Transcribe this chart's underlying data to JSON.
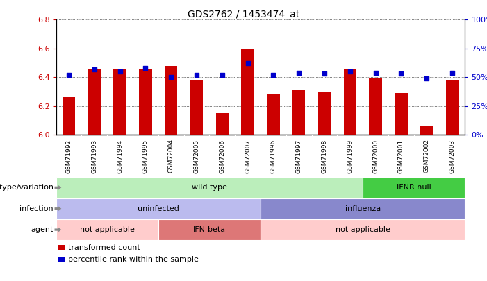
{
  "title": "GDS2762 / 1453474_at",
  "samples": [
    "GSM71992",
    "GSM71993",
    "GSM71994",
    "GSM71995",
    "GSM72004",
    "GSM72005",
    "GSM72006",
    "GSM72007",
    "GSM71996",
    "GSM71997",
    "GSM71998",
    "GSM71999",
    "GSM72000",
    "GSM72001",
    "GSM72002",
    "GSM72003"
  ],
  "bar_values": [
    6.26,
    6.46,
    6.46,
    6.46,
    6.48,
    6.38,
    6.15,
    6.6,
    6.28,
    6.31,
    6.3,
    6.46,
    6.39,
    6.29,
    6.06,
    6.38
  ],
  "dot_values": [
    52,
    57,
    55,
    58,
    50,
    52,
    52,
    62,
    52,
    54,
    53,
    55,
    54,
    53,
    49,
    54
  ],
  "bar_bottom": 6.0,
  "ylim_left": [
    6.0,
    6.8
  ],
  "ylim_right": [
    0,
    100
  ],
  "yticks_left": [
    6.0,
    6.2,
    6.4,
    6.6,
    6.8
  ],
  "yticks_right": [
    0,
    25,
    50,
    75,
    100
  ],
  "bar_color": "#cc0000",
  "dot_color": "#0000cc",
  "bg_color": "#ffffff",
  "annotation_rows": [
    {
      "label": "genotype/variation",
      "segments": [
        {
          "text": "wild type",
          "start": 0,
          "end": 12,
          "color": "#bbeebb"
        },
        {
          "text": "IFNR null",
          "start": 12,
          "end": 16,
          "color": "#44cc44"
        }
      ]
    },
    {
      "label": "infection",
      "segments": [
        {
          "text": "uninfected",
          "start": 0,
          "end": 8,
          "color": "#bbbbee"
        },
        {
          "text": "influenza",
          "start": 8,
          "end": 16,
          "color": "#8888cc"
        }
      ]
    },
    {
      "label": "agent",
      "segments": [
        {
          "text": "not applicable",
          "start": 0,
          "end": 4,
          "color": "#ffcccc"
        },
        {
          "text": "IFN-beta",
          "start": 4,
          "end": 8,
          "color": "#dd7777"
        },
        {
          "text": "not applicable",
          "start": 8,
          "end": 16,
          "color": "#ffcccc"
        }
      ]
    }
  ],
  "legend_items": [
    {
      "label": "transformed count",
      "color": "#cc0000"
    },
    {
      "label": "percentile rank within the sample",
      "color": "#0000cc"
    }
  ],
  "xtick_bg": "#cccccc"
}
